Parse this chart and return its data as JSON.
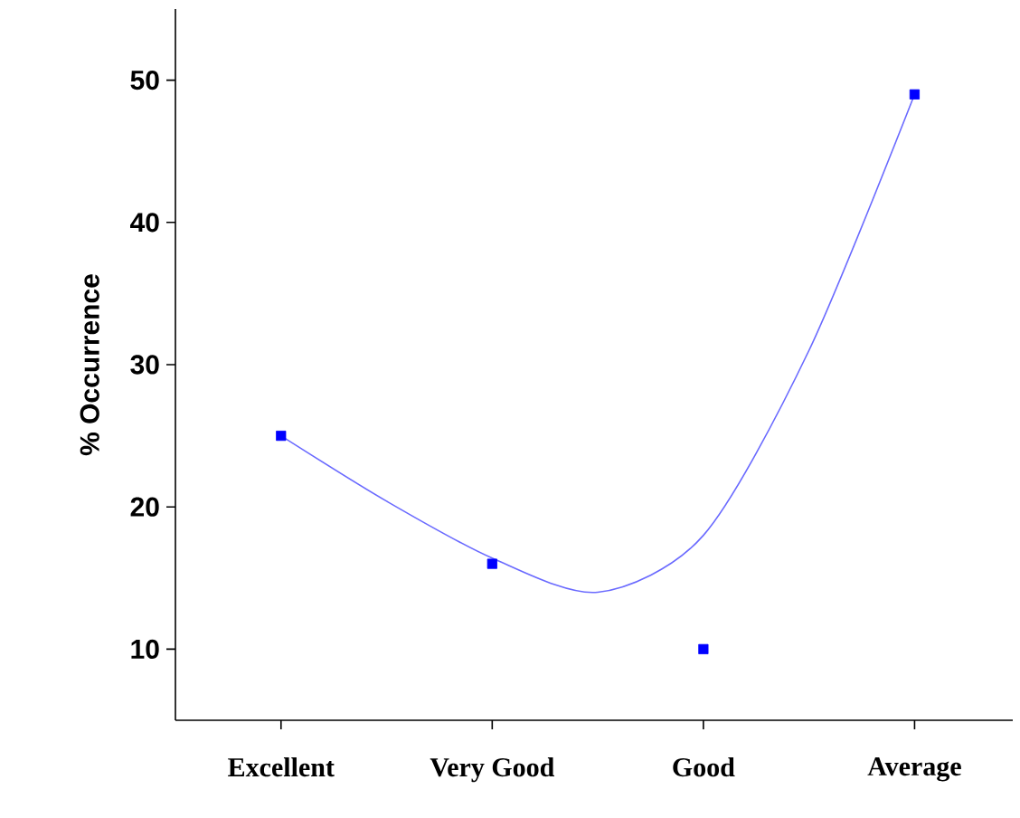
{
  "chart_data": {
    "type": "scatter",
    "ylabel": "% Occurrence",
    "categories": [
      "Excellent",
      null,
      "Very Good",
      null,
      "Good",
      null,
      "Average"
    ],
    "ylim": [
      5,
      55
    ],
    "yticks": [
      10,
      20,
      30,
      40,
      50
    ],
    "grid": false,
    "series": [
      {
        "type": "line",
        "color": "#6a6aff",
        "marker": "none",
        "line_style": "solid",
        "values": [
          25,
          20.4,
          16.4,
          14,
          18,
          31,
          49
        ]
      },
      {
        "color": "#0000ff",
        "marker": "square",
        "values": [
          25,
          null,
          16,
          null,
          10,
          null,
          49
        ]
      }
    ]
  }
}
